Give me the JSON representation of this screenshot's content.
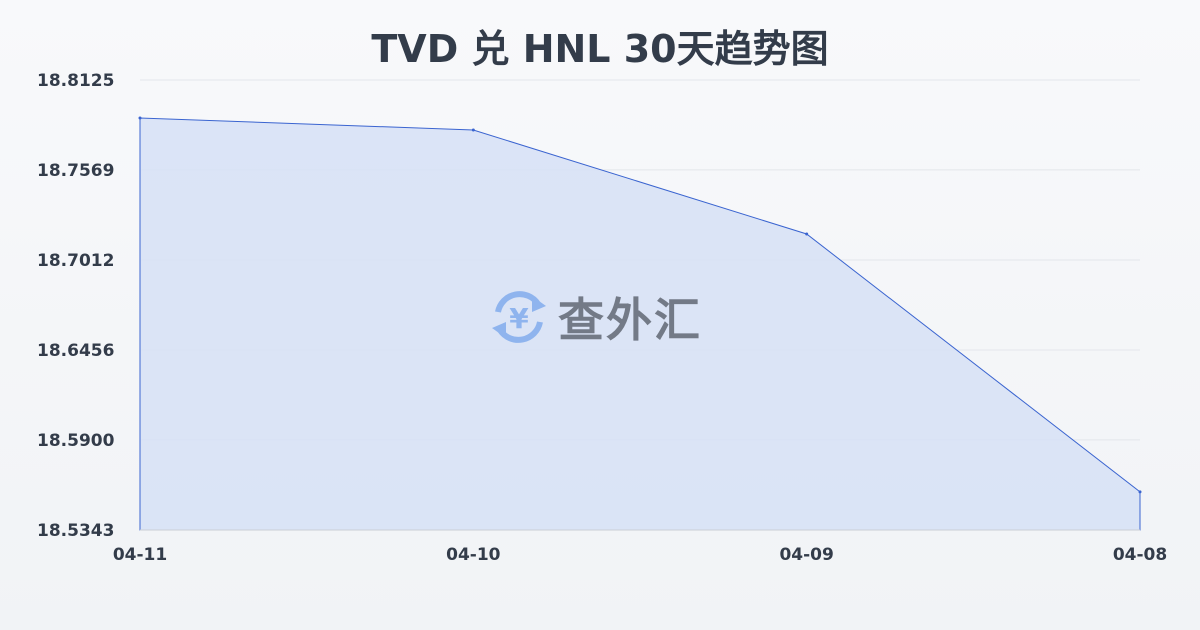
{
  "chart_data": {
    "type": "area",
    "title": "TVD 兑 HNL 30天趋势图",
    "categories": [
      "04-11",
      "04-10",
      "04-09",
      "04-08"
    ],
    "series": [
      {
        "values": [
          18.789,
          18.7816,
          18.7173,
          18.5579
        ]
      }
    ],
    "yticks": [
      "18.8125",
      "18.7569",
      "18.7012",
      "18.6456",
      "18.5900",
      "18.5343"
    ],
    "ylim": [
      18.5343,
      18.8125
    ],
    "grid": true,
    "line_color": "#3a64d0",
    "fill_color": "#d6e1f6"
  },
  "watermark": {
    "text": "查外汇",
    "icon": "yen-exchange-icon"
  }
}
